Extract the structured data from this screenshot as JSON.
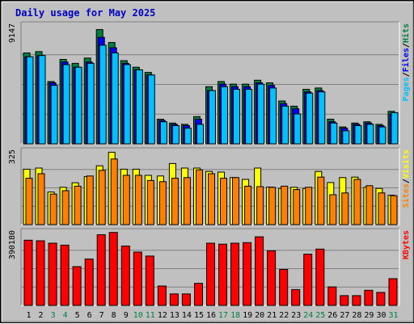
{
  "chart_data": {
    "type": "bar",
    "title": "Daily usage for May 2025",
    "categories": [
      "1",
      "2",
      "3",
      "4",
      "5",
      "6",
      "7",
      "8",
      "9",
      "10",
      "11",
      "12",
      "13",
      "14",
      "15",
      "16",
      "17",
      "18",
      "19",
      "20",
      "21",
      "22",
      "23",
      "24",
      "25",
      "26",
      "27",
      "28",
      "29",
      "30",
      "31"
    ],
    "weekend_days": [
      "3",
      "4",
      "10",
      "11",
      "17",
      "18",
      "24",
      "25",
      "31"
    ],
    "panels": [
      {
        "name": "hits_files_pages",
        "ymax_label": "9147",
        "ylim": [
          0,
          9147
        ],
        "ylabel_parts": [
          "Pages",
          "Files",
          "Hits"
        ],
        "series": [
          {
            "name": "Hits",
            "color": "#008040",
            "values": [
              7000,
              7100,
              4800,
              6500,
              6200,
              6600,
              8800,
              7800,
              6400,
              5900,
              5500,
              1900,
              1600,
              1500,
              2100,
              4400,
              4800,
              4600,
              4600,
              4900,
              4700,
              3300,
              2900,
              4200,
              4300,
              1900,
              1300,
              1600,
              1700,
              1500,
              2500
            ]
          },
          {
            "name": "Files",
            "color": "#0000ff",
            "values": [
              6700,
              6800,
              4700,
              6300,
              5900,
              6300,
              8200,
              7400,
              6200,
              5700,
              5300,
              1800,
              1500,
              1400,
              1900,
              4100,
              4600,
              4400,
              4400,
              4700,
              4500,
              3100,
              2700,
              4000,
              4100,
              1700,
              1200,
              1500,
              1600,
              1400,
              2300
            ]
          },
          {
            "name": "Pages",
            "color": "#00c0ff",
            "values": [
              6700,
              6800,
              4500,
              6100,
              5900,
              6200,
              7600,
              7000,
              6100,
              5700,
              5300,
              1700,
              1400,
              1200,
              1500,
              4100,
              4400,
              4200,
              4200,
              4600,
              4300,
              2900,
              2300,
              3900,
              4000,
              1600,
              1000,
              1400,
              1500,
              1300,
              2400
            ]
          }
        ]
      },
      {
        "name": "visits_sites",
        "ymax_label": "325",
        "ylim": [
          0,
          325
        ],
        "ylabel_parts": [
          "Sites",
          "Visits"
        ],
        "series": [
          {
            "name": "Visits",
            "color": "#ffff00",
            "values": [
              245,
              250,
              144,
              165,
              185,
              212,
              260,
              320,
              245,
              245,
              218,
              215,
              270,
              250,
              250,
              235,
              232,
              208,
              200,
              250,
              166,
              160,
              165,
              160,
              235,
              186,
              208,
              210,
              165,
              160,
              130
            ]
          },
          {
            "name": "Sites",
            "color": "#ff8000",
            "values": [
              205,
              225,
              135,
              150,
              170,
              215,
              240,
              290,
              218,
              218,
              195,
              190,
              205,
              208,
              242,
              225,
              205,
              208,
              170,
              168,
              165,
              170,
              155,
              165,
              210,
              132,
              140,
              200,
              172,
              140,
              128
            ]
          }
        ]
      },
      {
        "name": "kbytes",
        "ymax_label": "390180",
        "ylim": [
          0,
          390180
        ],
        "ylabel_parts": [
          "KBytes"
        ],
        "series": [
          {
            "name": "KBytes",
            "color": "#ff0000",
            "values": [
              346000,
              343000,
              330000,
              320000,
              206000,
              246000,
              375000,
              387000,
              315000,
              283000,
              262000,
              103000,
              61000,
              61000,
              117000,
              330000,
              325000,
              330000,
              333000,
              364000,
              290000,
              191000,
              84000,
              272000,
              299000,
              98000,
              52000,
              52000,
              80000,
              69000,
              142000
            ]
          }
        ]
      }
    ],
    "colors": {
      "title": "#0000c0",
      "hits_label": "#008040",
      "files_label": "#0000ff",
      "pages_label": "#00c0ff",
      "visits_label": "#ffff00",
      "sites_label": "#ff8000",
      "kbytes_label": "#ff0000",
      "weekday_tick": "#000000",
      "weekend_tick": "#008040",
      "background": "#c0c0c0"
    }
  }
}
